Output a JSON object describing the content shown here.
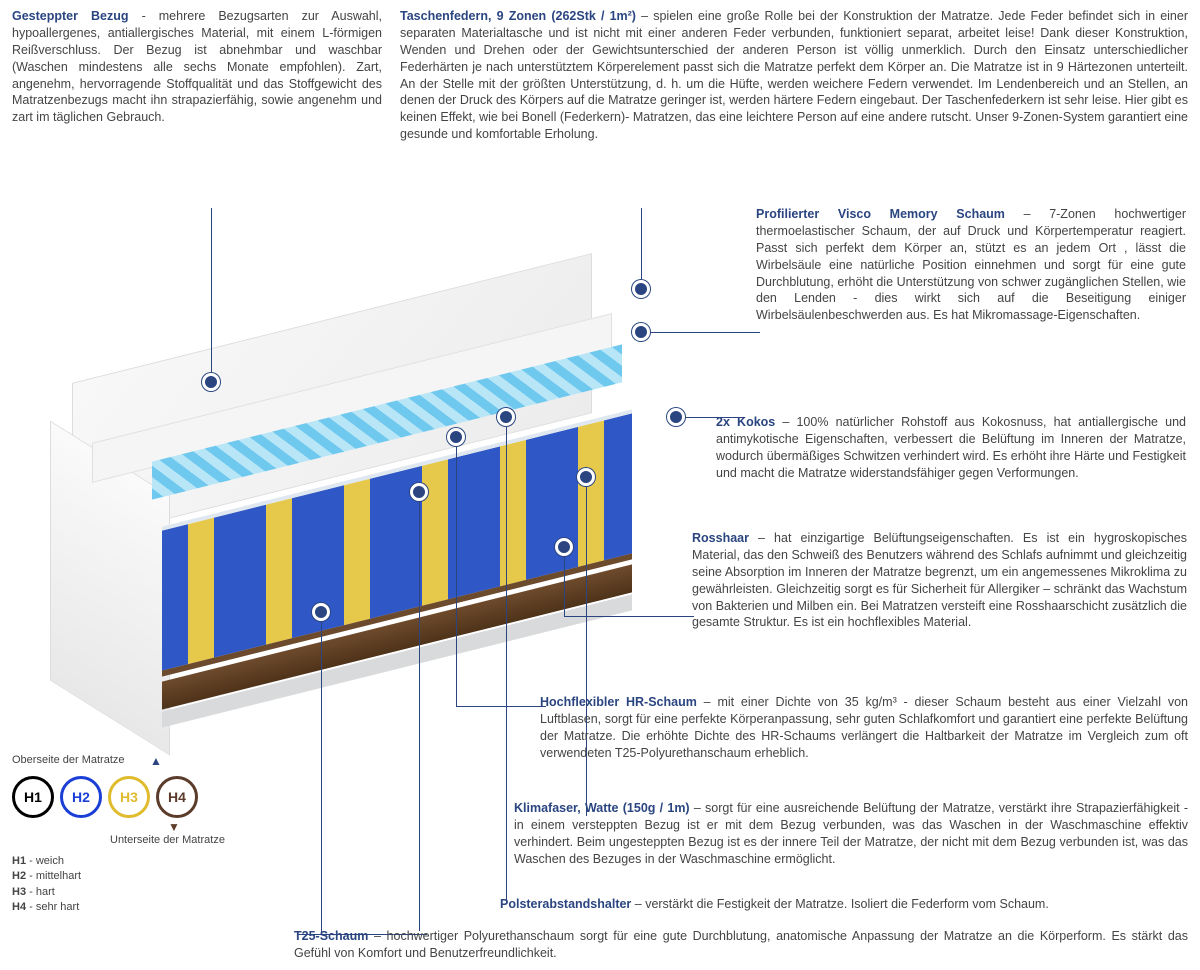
{
  "top_left": {
    "title": "Gesteppter Bezug",
    "text": " - mehrere Bezugsarten zur Auswahl, hypoallergenes, antiallergisches Material, mit einem L-förmigen Reißverschluss. Der Bezug ist abnehmbar  und waschbar (Waschen mindestens alle sechs Monate empfohlen). Zart, angenehm, hervorragende Stoffqualität und das Stoffgewicht des Matratzenbezugs macht ihn strapazierfähig, sowie angenehm und zart im täglichen Gebrauch."
  },
  "top_right": {
    "title": "Taschenfedern, 9 Zonen (262Stk / 1m²)",
    "text": " –  spielen eine große Rolle bei der Konstruktion der Matratze. Jede Feder befindet sich in einer separaten Materialtasche und ist nicht mit einer anderen Feder verbunden, funktioniert separat, arbeitet leise! Dank dieser Konstruktion, Wenden und Drehen oder der Gewichtsunterschied der anderen Person ist völlig unmerklich. Durch den Einsatz unterschiedlicher Federhärten je nach unterstütztem Körperelement passt sich die Matratze perfekt dem Körper an. Die Matratze ist in 9 Härtezonen unterteilt. An der Stelle mit der größten Unterstützung, d. h. um die Hüfte, werden weichere Federn verwendet. Im Lendenbereich und an Stellen, an denen der Druck des Körpers auf die Matratze geringer ist, werden härtere Federn eingebaut. Der Taschenfederkern ist sehr leise. Hier gibt es keinen Effekt, wie bei Bonell (Federkern)- Matratzen, das eine leichtere Person auf eine andere rutscht. Unser 9-Zonen-System garantiert eine gesunde und komfortable Erholung."
  },
  "sections": {
    "visco": {
      "title": "Profilierter Visco Memory Schaum",
      "text": " –  7-Zonen hochwertiger thermoelastischer Schaum, der auf Druck und Körpertemperatur reagiert. Passt sich perfekt dem Körper an, stützt es an jedem Ort , lässt die Wirbelsäule eine natürliche Position einnehmen und sorgt für eine gute Durchblutung, erhöht die Unterstützung von schwer zugänglichen Stellen, wie den Lenden - dies wirkt sich auf die Beseitigung einiger Wirbelsäulenbeschwerden aus. Es hat Mikromassage-Eigenschaften."
    },
    "kokos": {
      "title": "2x Kokos",
      "text": " –  100% natürlicher Rohstoff aus Kokosnuss, hat antiallergische und antimykotische Eigenschaften, verbessert die Belüftung im Inneren der Matratze, wodurch übermäßiges Schwitzen verhindert wird. Es erhöht ihre Härte und Festigkeit und macht die Matratze widerstandsfähiger gegen Verformungen."
    },
    "rosshaar": {
      "title": "Rosshaar",
      "text": " –  hat einzigartige Belüftungseigenschaften. Es ist ein hygroskopisches Material, das den Schweiß des Benutzers während des Schlafs aufnimmt und gleichzeitig seine Absorption im Inneren der Matratze begrenzt, um ein angemessenes Mikroklima zu gewährleisten. Gleichzeitig sorgt es für Sicherheit für Allergiker – schränkt das Wachstum von Bakterien und Milben ein. Bei Matratzen versteift eine Rosshaarschicht zusätzlich die gesamte Struktur. Es ist ein hochflexibles Material."
    },
    "hr": {
      "title": "Hochflexibler HR-Schaum",
      "text": " –  mit einer Dichte von 35 kg/m³ - dieser Schaum besteht aus einer Vielzahl von Luftblasen, sorgt für eine perfekte Körperanpassung, sehr guten Schlafkomfort und garantiert eine perfekte Belüftung der Matratze. Die erhöhte Dichte des HR-Schaums verlängert die Haltbarkeit der Matratze im Vergleich zum oft verwendeten T25-Polyurethanschaum erheblich."
    },
    "klima": {
      "title": "Klimafaser, Watte (150g / 1m)",
      "text": " –  sorgt für eine ausreichende Belüftung der Matratze, verstärkt ihre Strapazierfähigkeit - in einem versteppten Bezug ist er mit dem Bezug verbunden, was das Waschen in der Waschmaschine effektiv verhindert. Beim ungesteppten Bezug ist es der innere Teil der Matratze, der nicht mit dem Bezug verbunden ist, was das Waschen des Bezuges in der Waschmaschine ermöglicht."
    },
    "polster": {
      "title": "Polsterabstandshalter",
      "text": " –  verstärkt die Festigkeit der Matratze. Isoliert die Federform vom Schaum."
    },
    "t25": {
      "title": "T25-Schaum",
      "text": " – hochwertiger Polyurethanschaum sorgt für eine gute Durchblutung, anatomische Anpassung der Matratze an die Körperform. Es stärkt das Gefühl von Komfort und Benutzerfreundlichkeit."
    }
  },
  "hardness": {
    "top_label": "Oberseite der Matratze",
    "bottom_label": "Unterseite der Matratze",
    "items": [
      {
        "label": "H1",
        "color": "#000000"
      },
      {
        "label": "H2",
        "color": "#1b3fd6"
      },
      {
        "label": "H3",
        "color": "#e0bb2d"
      },
      {
        "label": "H4",
        "color": "#5b3b2a"
      }
    ],
    "legend": [
      {
        "code": "H1",
        "desc": "weich"
      },
      {
        "code": "H2",
        "desc": "mittelhart"
      },
      {
        "code": "H3",
        "desc": "hart"
      },
      {
        "code": "H4",
        "desc": "sehr hart"
      }
    ]
  },
  "colors": {
    "title": "#2a4580",
    "hotspot": "#2a4580"
  }
}
